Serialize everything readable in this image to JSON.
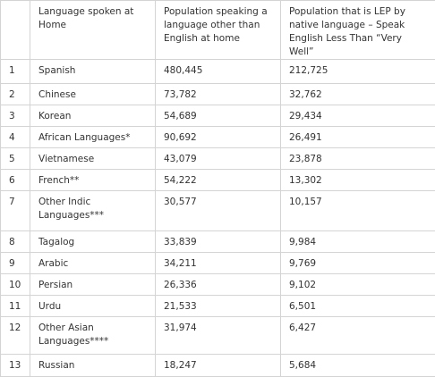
{
  "table": {
    "header": [
      "",
      "Language spoken at Home",
      "Population speaking a language other than English at home",
      "Population that is LEP by native language – Speak English Less Than “Very Well”"
    ],
    "rows": [
      [
        "1",
        "Spanish",
        "480,445",
        "212,725"
      ],
      [
        "2",
        "Chinese",
        "73,782",
        "32,762"
      ],
      [
        "3",
        "Korean",
        "54,689",
        "29,434"
      ],
      [
        "4",
        "African Languages*",
        "90,692",
        "26,491"
      ],
      [
        "5",
        "Vietnamese",
        "43,079",
        "23,878"
      ],
      [
        "6",
        "French**",
        "54,222",
        "13,302"
      ],
      [
        "7",
        "Other Indic Languages***",
        "30,577",
        "10,157"
      ],
      [
        "8",
        "Tagalog",
        "33,839",
        "9,984"
      ],
      [
        "9",
        "Arabic",
        "34,211",
        "9,769"
      ],
      [
        "10",
        "Persian",
        "26,336",
        "9,102"
      ],
      [
        "11",
        "Urdu",
        "21,533",
        "6,501"
      ],
      [
        "12",
        "Other Asian Languages****",
        "31,974",
        "6,427"
      ],
      [
        "13",
        "Russian",
        "18,247",
        "5,684"
      ]
    ]
  }
}
